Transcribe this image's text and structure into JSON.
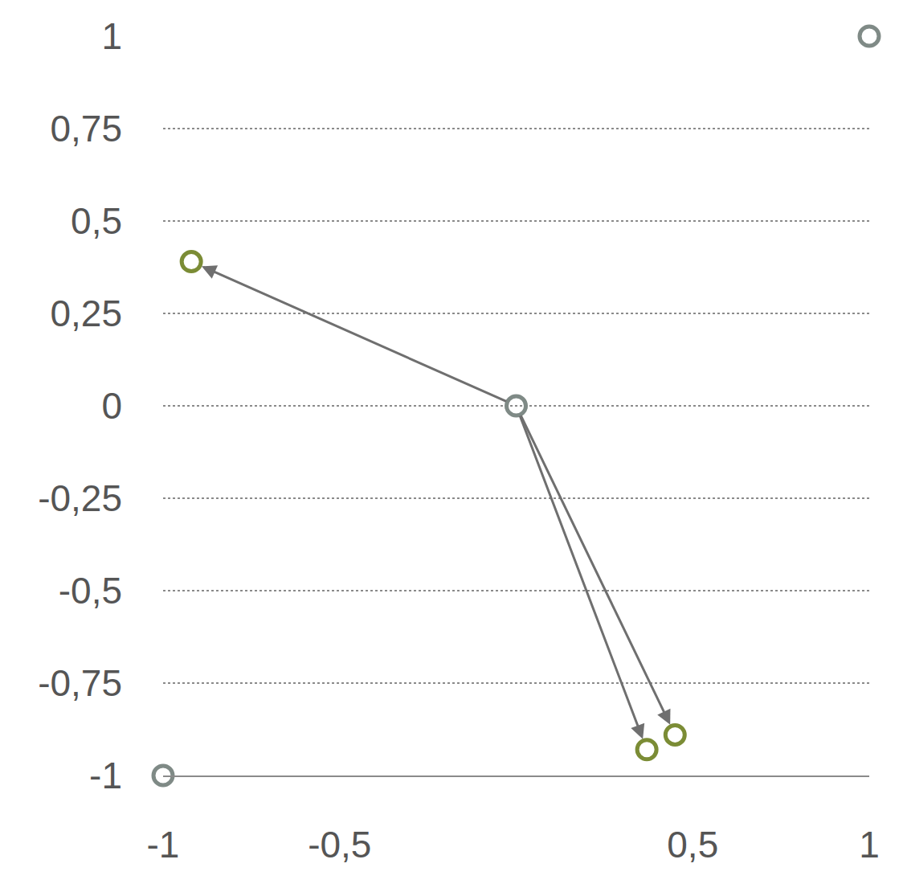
{
  "chart_data": {
    "type": "scatter",
    "xlim": [
      -1,
      1
    ],
    "ylim": [
      -1,
      1
    ],
    "xticks": [
      -1,
      {
        "value": -0.5,
        "label": "-0,5"
      },
      {
        "value": 0.5,
        "label": "0,5"
      },
      1
    ],
    "yticks": [
      -1,
      {
        "value": -0.75,
        "label": "-0,75"
      },
      {
        "value": -0.5,
        "label": "-0,5"
      },
      {
        "value": -0.25,
        "label": "-0,25"
      },
      0,
      {
        "value": 0.25,
        "label": "0,25"
      },
      {
        "value": 0.5,
        "label": "0,5"
      },
      {
        "value": 0.75,
        "label": "0,75"
      },
      1
    ],
    "grid": true,
    "series": [
      {
        "color": "#7f8a86",
        "marker": "circle-open",
        "x": [
          -1,
          0,
          1
        ],
        "y": [
          -1,
          0,
          1
        ]
      },
      {
        "color": "#7b8c35",
        "marker": "circle-open",
        "x": [
          -0.92,
          0.37,
          0.45
        ],
        "y": [
          0.39,
          -0.93,
          -0.89
        ],
        "arrow_from": [
          0,
          0
        ]
      }
    ]
  }
}
